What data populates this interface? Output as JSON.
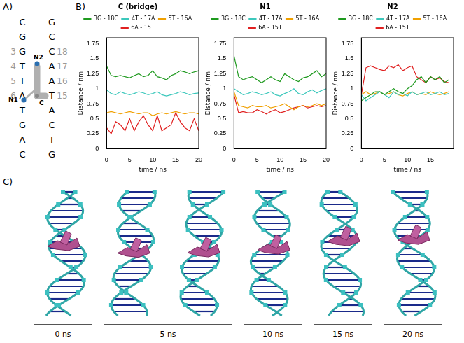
{
  "panel_labels": [
    "A)",
    "B)",
    "C)"
  ],
  "sequence_diagram": {
    "strand_1": [
      "C",
      "G",
      "G",
      "T",
      "T",
      "A",
      "T",
      "G",
      "A",
      "C"
    ],
    "strand_1_numbers": [
      null,
      null,
      "3",
      "4",
      "5",
      "6",
      null,
      null,
      null,
      null
    ],
    "strand_2": [
      "G",
      "C",
      "C",
      "A",
      "A",
      "T",
      "A",
      "C",
      "T",
      "G"
    ],
    "strand_2_numbers": [
      null,
      null,
      "18",
      "17",
      "16",
      "15",
      null,
      null,
      null,
      null
    ],
    "points": [
      "N1",
      "N2",
      "C"
    ]
  },
  "chart_data": [
    {
      "type": "line",
      "title": "C (bridge)",
      "x_label": "time / ns",
      "y_label": "Distance / nm",
      "x": [
        0,
        1,
        2,
        3,
        4,
        5,
        6,
        7,
        8,
        9,
        10,
        11,
        12,
        13,
        14,
        15,
        16,
        17,
        18,
        19,
        20
      ],
      "series": [
        {
          "name": "3G - 18C",
          "color": "#1f9a1f",
          "values": [
            1.38,
            1.22,
            1.2,
            1.22,
            1.2,
            1.18,
            1.22,
            1.25,
            1.2,
            1.22,
            1.3,
            1.2,
            1.18,
            1.15,
            1.22,
            1.25,
            1.3,
            1.28,
            1.25,
            1.28,
            1.3
          ]
        },
        {
          "name": "4T - 17A",
          "color": "#3cc8bc",
          "values": [
            0.98,
            0.92,
            0.9,
            0.95,
            0.92,
            0.9,
            0.92,
            0.95,
            0.93,
            0.9,
            0.92,
            0.95,
            0.9,
            0.88,
            0.9,
            0.92,
            0.95,
            0.93,
            0.9,
            0.92,
            0.93
          ]
        },
        {
          "name": "5T - 16A",
          "color": "#f0a000",
          "values": [
            0.6,
            0.62,
            0.6,
            0.58,
            0.6,
            0.62,
            0.6,
            0.58,
            0.6,
            0.6,
            0.55,
            0.58,
            0.6,
            0.58,
            0.6,
            0.62,
            0.6,
            0.58,
            0.6,
            0.6,
            0.58
          ]
        },
        {
          "name": "6A - 15T",
          "color": "#e02020",
          "values": [
            0.35,
            0.25,
            0.45,
            0.4,
            0.3,
            0.5,
            0.3,
            0.45,
            0.55,
            0.4,
            0.3,
            0.55,
            0.3,
            0.35,
            0.4,
            0.6,
            0.45,
            0.35,
            0.3,
            0.5,
            0.3
          ]
        }
      ],
      "xlim": [
        0,
        20
      ],
      "xticks": [
        0,
        5,
        10,
        15,
        20
      ],
      "ylim": [
        0,
        1.85
      ],
      "yticks": [
        0,
        0.25,
        0.5,
        0.75,
        1,
        1.25,
        1.5,
        1.75
      ],
      "grid": false,
      "legend": "top"
    },
    {
      "type": "line",
      "title": "N1",
      "x_label": "time / ns",
      "y_label": "Distance / nm",
      "x": [
        0,
        1,
        2,
        3,
        4,
        5,
        6,
        7,
        8,
        9,
        10,
        11,
        12,
        13,
        14,
        15,
        16,
        17,
        18,
        19,
        20
      ],
      "series": [
        {
          "name": "3G - 18C",
          "color": "#1f9a1f",
          "values": [
            1.55,
            1.2,
            1.15,
            1.18,
            1.2,
            1.15,
            1.1,
            1.15,
            1.2,
            1.15,
            1.12,
            1.25,
            1.2,
            1.15,
            1.12,
            1.18,
            1.2,
            1.25,
            1.3,
            1.2,
            1.25
          ]
        },
        {
          "name": "4T - 17A",
          "color": "#3cc8bc",
          "values": [
            1.0,
            0.95,
            0.9,
            0.92,
            0.95,
            0.93,
            0.9,
            0.92,
            0.95,
            0.9,
            0.88,
            0.92,
            0.95,
            1.0,
            0.92,
            0.9,
            0.95,
            0.98,
            0.93,
            0.97,
            1.0
          ]
        },
        {
          "name": "5T - 16A",
          "color": "#f0a000",
          "values": [
            0.95,
            0.72,
            0.7,
            0.68,
            0.72,
            0.7,
            0.7,
            0.72,
            0.68,
            0.7,
            0.72,
            0.75,
            0.7,
            0.65,
            0.7,
            0.72,
            0.7,
            0.72,
            0.75,
            0.72,
            0.75
          ]
        },
        {
          "name": "6A - 15T",
          "color": "#e02020",
          "values": [
            0.9,
            0.6,
            0.62,
            0.6,
            0.6,
            0.65,
            0.62,
            0.58,
            0.62,
            0.65,
            0.6,
            0.62,
            0.65,
            0.68,
            0.7,
            0.72,
            0.68,
            0.7,
            0.72,
            0.7,
            0.72
          ]
        }
      ],
      "xlim": [
        0,
        20
      ],
      "xticks": [
        0,
        5,
        10,
        15,
        20
      ],
      "ylim": [
        0,
        1.85
      ],
      "yticks": [
        0,
        0.25,
        0.5,
        0.75,
        1,
        1.25,
        1.5,
        1.75
      ],
      "grid": false,
      "legend": "top"
    },
    {
      "type": "line",
      "title": "N2",
      "x_label": "time / ns",
      "y_label": "Distance / nm",
      "x": [
        0,
        1,
        2,
        3,
        4,
        5,
        6,
        7,
        8,
        9,
        10,
        11,
        12,
        13,
        14,
        15,
        16,
        17,
        18,
        19
      ],
      "series": [
        {
          "name": "3G - 18C",
          "color": "#1f9a1f",
          "values": [
            0.8,
            0.85,
            0.9,
            0.95,
            0.95,
            0.9,
            0.95,
            1.0,
            0.95,
            0.92,
            1.0,
            1.05,
            1.15,
            1.2,
            1.1,
            1.2,
            1.15,
            1.2,
            1.1,
            1.15
          ]
        },
        {
          "name": "4T - 17A",
          "color": "#3cc8bc",
          "values": [
            0.9,
            0.8,
            0.85,
            0.9,
            0.95,
            0.9,
            0.85,
            0.95,
            0.9,
            0.92,
            0.88,
            0.95,
            0.9,
            0.92,
            0.95,
            0.9,
            0.92,
            0.95,
            0.9,
            0.92
          ]
        },
        {
          "name": "5T - 16A",
          "color": "#f0a000",
          "values": [
            0.9,
            0.95,
            0.9,
            0.92,
            0.95,
            0.9,
            0.92,
            0.95,
            0.9,
            0.88,
            0.92,
            0.95,
            0.9,
            0.92,
            0.9,
            0.95,
            0.92,
            0.9,
            0.92,
            0.95
          ]
        },
        {
          "name": "6A - 15T",
          "color": "#e02020",
          "values": [
            0.9,
            1.35,
            1.38,
            1.35,
            1.32,
            1.3,
            1.38,
            1.35,
            1.4,
            1.3,
            1.35,
            1.38,
            1.2,
            1.15,
            1.1,
            1.2,
            1.15,
            1.18,
            1.12,
            1.1
          ]
        }
      ],
      "xlim": [
        0,
        20
      ],
      "xticks": [
        0,
        5,
        10,
        15
      ],
      "ylim": [
        0,
        1.85
      ],
      "yticks": [
        0,
        0.25,
        0.5,
        0.75,
        1,
        1.25,
        1.5,
        1.75
      ],
      "grid": false,
      "legend": "top"
    }
  ],
  "snapshots": [
    {
      "time_label": "0 ns",
      "structures": 1
    },
    {
      "time_label": "5 ns",
      "structures": 2
    },
    {
      "time_label": "10 ns",
      "structures": 1
    },
    {
      "time_label": "15 ns",
      "structures": 1
    },
    {
      "time_label": "20 ns",
      "structures": 1
    }
  ]
}
